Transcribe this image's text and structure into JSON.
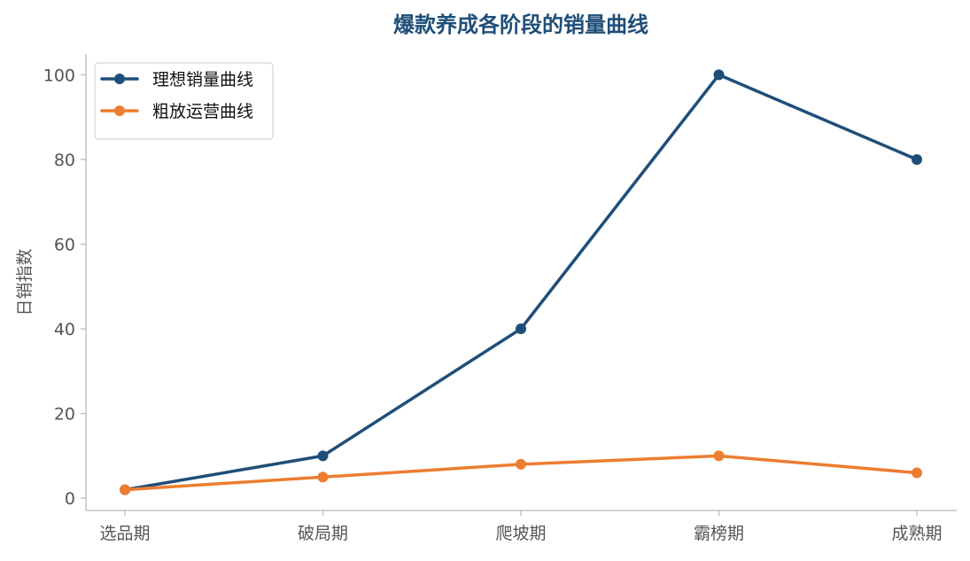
{
  "chart_data": {
    "type": "line",
    "title": "爆款养成各阶段的销量曲线",
    "xlabel": "",
    "ylabel": "日销指数",
    "categories": [
      "选品期",
      "破局期",
      "爬坡期",
      "霸榜期",
      "成熟期"
    ],
    "series": [
      {
        "name": "理想销量曲线",
        "values": [
          2,
          10,
          40,
          100,
          80
        ],
        "color": "#1f4e79"
      },
      {
        "name": "粗放运营曲线",
        "values": [
          2,
          5,
          8,
          10,
          6
        ],
        "color": "#ed7d31"
      }
    ],
    "ylim": [
      -2.9,
      104.9
    ],
    "yticks": [
      0,
      20,
      40,
      60,
      80,
      100
    ],
    "grid": false,
    "legend_position": "top-left",
    "title_color": "#1f4e79",
    "axis_color": "#bbbbbb"
  }
}
